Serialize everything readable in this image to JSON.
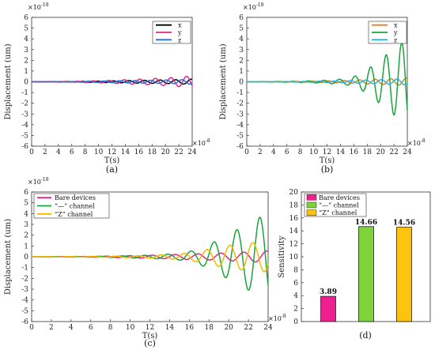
{
  "chart_data": [
    {
      "id": "a",
      "type": "line",
      "caption": "(a)",
      "xlabel": "T(s)",
      "ylabel": "Displacement (um)",
      "y_multiplier": "×10",
      "y_exponent": "-18",
      "x_multiplier": "×10",
      "x_exponent": "-8",
      "xlim": [
        0,
        24
      ],
      "ylim": [
        -6,
        6
      ],
      "x_ticks": [
        "0",
        "2",
        "4",
        "6",
        "8",
        "10",
        "12",
        "14",
        "16",
        "18",
        "20",
        "22",
        "24"
      ],
      "y_ticks": [
        "-6",
        "-5",
        "-4",
        "-3",
        "-2",
        "-1",
        "0",
        "1",
        "2",
        "3",
        "4",
        "5",
        "6"
      ],
      "legend_position": "top-right",
      "series": [
        {
          "name": "x",
          "color": "#000000",
          "x": [
            0,
            6,
            9,
            12,
            15,
            18,
            21,
            23,
            24
          ],
          "y": [
            0,
            0.02,
            0.05,
            0.08,
            0.12,
            0.15,
            0.18,
            0.22,
            0.25
          ]
        },
        {
          "name": "y",
          "color": "#e0278c",
          "x": [
            0,
            6,
            9,
            12,
            15,
            18,
            21,
            23,
            24
          ],
          "y": [
            0,
            0.03,
            0.08,
            0.14,
            0.22,
            0.3,
            0.4,
            0.5,
            0.55
          ]
        },
        {
          "name": "z",
          "color": "#1f6fe0",
          "x": [
            0,
            6,
            9,
            12,
            15,
            18,
            21,
            23,
            24
          ],
          "y": [
            0,
            0.02,
            0.05,
            0.08,
            0.11,
            0.14,
            0.17,
            0.2,
            0.22
          ]
        }
      ]
    },
    {
      "id": "b",
      "type": "line",
      "caption": "(b)",
      "xlabel": "T(s)",
      "ylabel": "Displacement (um)",
      "y_multiplier": "×10",
      "y_exponent": "-18",
      "x_multiplier": "×10",
      "x_exponent": "-8",
      "xlim": [
        0,
        24
      ],
      "ylim": [
        -6,
        6
      ],
      "x_ticks": [
        "0",
        "2",
        "4",
        "6",
        "8",
        "10",
        "12",
        "14",
        "16",
        "18",
        "20",
        "22",
        "24"
      ],
      "y_ticks": [
        "-6",
        "-5",
        "-4",
        "-3",
        "-2",
        "-1",
        "0",
        "1",
        "2",
        "3",
        "4",
        "5",
        "6"
      ],
      "legend_position": "top-right",
      "series": [
        {
          "name": "x",
          "color": "#f07a1a",
          "x": [
            0,
            8,
            12,
            15,
            17,
            19,
            21,
            23,
            24
          ],
          "y": [
            0,
            0.03,
            0.08,
            0.12,
            0.18,
            0.22,
            0.27,
            0.32,
            0.35
          ]
        },
        {
          "name": "y",
          "color": "#1aa43c",
          "x": [
            0,
            8,
            12,
            15,
            17,
            19,
            21,
            23,
            24
          ],
          "y": [
            0,
            0.05,
            0.15,
            0.3,
            0.7,
            1.6,
            2.6,
            3.6,
            4.0
          ]
        },
        {
          "name": "z",
          "color": "#2ab5e0",
          "x": [
            0,
            8,
            12,
            15,
            17,
            19,
            21,
            23,
            24
          ],
          "y": [
            0,
            0.03,
            0.06,
            0.1,
            0.14,
            0.18,
            0.22,
            0.27,
            0.3
          ]
        }
      ]
    },
    {
      "id": "c",
      "type": "line",
      "caption": "(c)",
      "xlabel": "T(s)",
      "ylabel": "Displacement (um)",
      "y_multiplier": "×10",
      "y_exponent": "-18",
      "x_multiplier": "×10",
      "x_exponent": "-8",
      "xlim": [
        0,
        24
      ],
      "ylim": [
        -6,
        6
      ],
      "x_ticks": [
        "0",
        "2",
        "4",
        "6",
        "8",
        "10",
        "12",
        "14",
        "16",
        "18",
        "20",
        "22",
        "24"
      ],
      "y_ticks": [
        "-6",
        "-5",
        "-4",
        "-3",
        "-2",
        "-1",
        "0",
        "1",
        "2",
        "3",
        "4",
        "5",
        "6"
      ],
      "legend_position": "top-left",
      "series": [
        {
          "name": "Bare devices",
          "color": "#e0278c",
          "x": [
            0,
            6,
            9,
            12,
            15,
            18,
            21,
            23,
            24
          ],
          "y": [
            0,
            0.03,
            0.08,
            0.14,
            0.22,
            0.3,
            0.4,
            0.5,
            0.55
          ]
        },
        {
          "name": "“—” channel",
          "color": "#1aa43c",
          "x": [
            0,
            8,
            12,
            15,
            17,
            19,
            21,
            23,
            24
          ],
          "y": [
            0,
            0.05,
            0.15,
            0.3,
            0.7,
            1.6,
            2.6,
            3.6,
            4.0
          ]
        },
        {
          "name": "“Z” channel",
          "color": "#f5b800",
          "x": [
            0,
            8,
            12,
            15,
            17,
            19,
            21,
            23,
            24
          ],
          "y": [
            0,
            0.05,
            0.12,
            0.25,
            0.5,
            0.9,
            1.2,
            1.35,
            1.4
          ]
        }
      ]
    },
    {
      "id": "d",
      "type": "bar",
      "caption": "(d)",
      "ylabel": "Sensitivity",
      "ylim": [
        0,
        20
      ],
      "y_ticks": [
        "0",
        "2",
        "4",
        "6",
        "8",
        "10",
        "12",
        "14",
        "16",
        "18",
        "20"
      ],
      "legend_position": "top-right",
      "categories": [
        "Bare devices",
        "“—” channel",
        "“Z” channel"
      ],
      "values": [
        3.89,
        14.66,
        14.56
      ],
      "value_labels": [
        "3.89",
        "14.66",
        "14.56"
      ],
      "colors": [
        "#ee1f8e",
        "#7ed23a",
        "#ffc20e"
      ]
    }
  ]
}
